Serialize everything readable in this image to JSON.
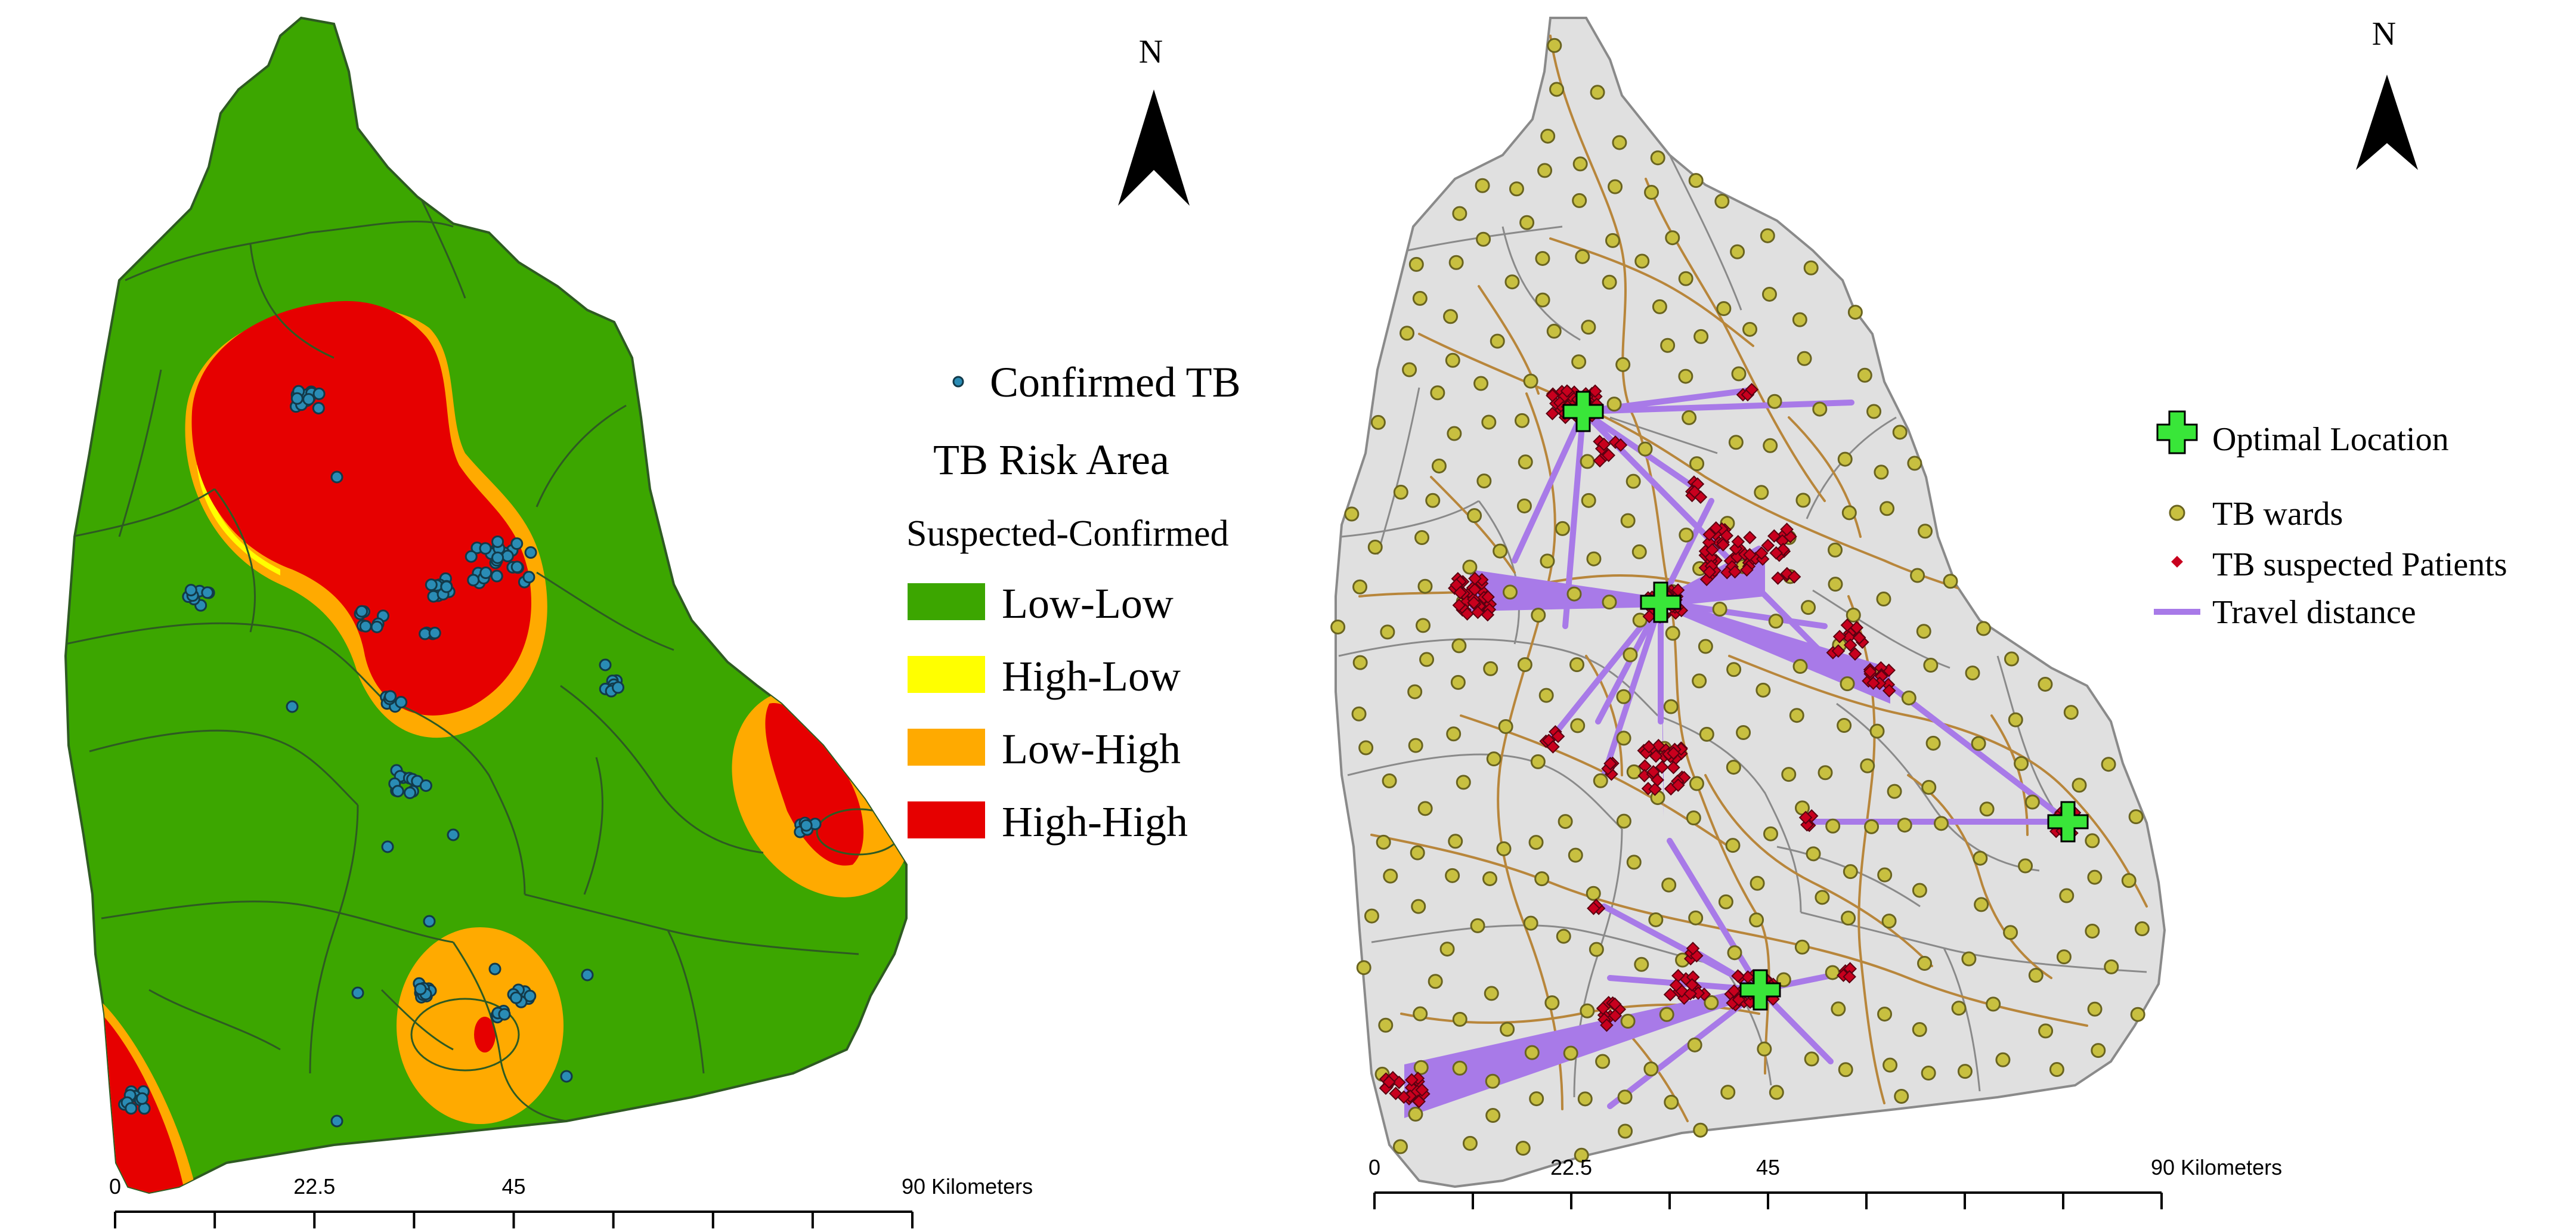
{
  "colors": {
    "low_low": "#3ca600",
    "high_low": "#ffff00",
    "low_high": "#ffaa00",
    "high_high": "#e60000",
    "confirmed_tb": "#2a8cb5",
    "ward_fill": "#c8c040",
    "suspected": "#c8001e",
    "optimal": "#39e639",
    "travel": "#a87ae8",
    "road": "#b8863b",
    "boundary_dark": "#2e5a22",
    "boundary_grey": "#8a8a8a",
    "land_grey": "#e0e0e0"
  },
  "left_map": {
    "north_label": "N",
    "legend": {
      "confirmed_tb": "Confirmed TB",
      "risk_title": "TB Risk Area",
      "risk_subtitle": "Suspected-Confirmed",
      "classes": [
        {
          "label": "Low-Low",
          "color": "#3ca600"
        },
        {
          "label": "High-Low",
          "color": "#ffff00"
        },
        {
          "label": "Low-High",
          "color": "#ffaa00"
        },
        {
          "label": "High-High",
          "color": "#e60000"
        }
      ]
    },
    "scale": {
      "ticks": [
        "0",
        "22.5",
        "45",
        "90 Kilometers"
      ]
    }
  },
  "right_map": {
    "north_label": "N",
    "legend": {
      "optimal_location": "Optimal Location",
      "tb_wards": "TB wards",
      "tb_suspected": "TB suspected Patients",
      "travel_distance": "Travel distance"
    },
    "scale": {
      "ticks": [
        "0",
        "22.5",
        "45",
        "90 Kilometers"
      ]
    }
  }
}
